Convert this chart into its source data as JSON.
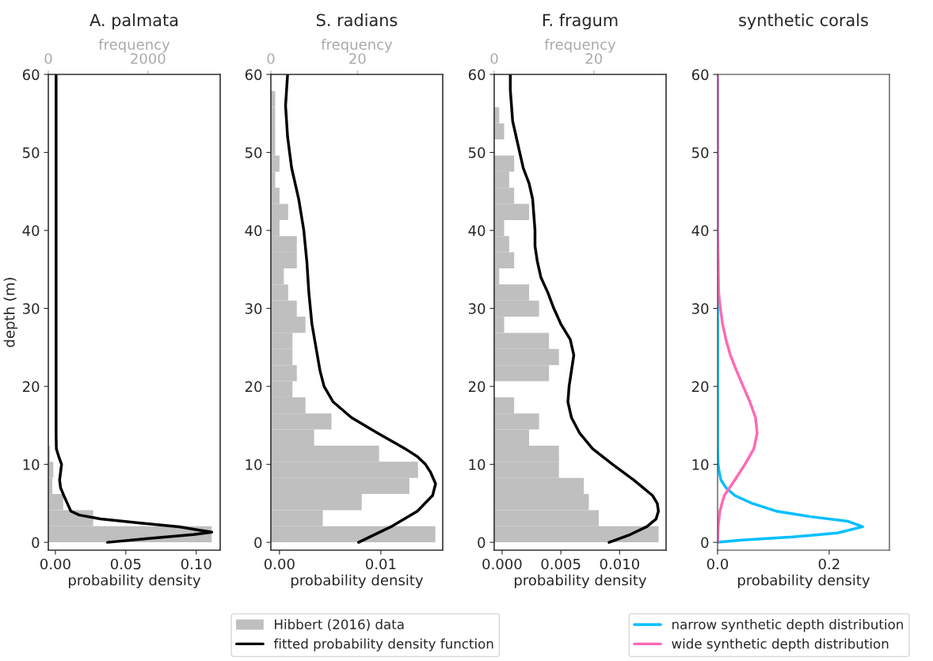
{
  "chart_data": [
    {
      "type": "line",
      "orientation": "horizontal",
      "title": "A. palmata",
      "xlabel": "probability density",
      "ylabel": "depth (m)",
      "x2label": "frequency",
      "xlim": [
        -0.005,
        0.117
      ],
      "xticks": [
        {
          "value": 0,
          "label": "0.00"
        },
        {
          "value": 0.05,
          "label": "0.05"
        },
        {
          "value": 0.1,
          "label": "0.10"
        }
      ],
      "x2lim": [
        0,
        3450
      ],
      "x2ticks": [
        0,
        2000
      ],
      "ylim": [
        -1,
        60
      ],
      "yticks": [
        0,
        10,
        20,
        30,
        40,
        50,
        60
      ],
      "series": [
        {
          "type": "histogram",
          "axis": "x2",
          "color": "#bfbfbf",
          "bins": [
            0,
            2.07,
            4.13,
            6.2,
            8.27,
            10.33,
            12.4
          ],
          "values": [
            3280,
            900,
            300,
            80,
            100,
            30
          ]
        },
        {
          "color": "#000000",
          "x": [
            0,
            0.5,
            1,
            1.3,
            2,
            2.5,
            3,
            3.5,
            4,
            5,
            6,
            7,
            8,
            9,
            10,
            11,
            12,
            14,
            20,
            60
          ],
          "values": [
            0.037,
            0.066,
            0.098,
            0.111,
            0.088,
            0.059,
            0.032,
            0.017,
            0.011,
            0.0085,
            0.006,
            0.0037,
            0.003,
            0.0037,
            0.0044,
            0.0024,
            0.0007,
            0.0005,
            0.0005,
            0.0005
          ]
        }
      ]
    },
    {
      "type": "line",
      "orientation": "horizontal",
      "title": "S. radians",
      "xlabel": "probability density",
      "x2label": "frequency",
      "xlim": [
        -0.00085,
        0.0161
      ],
      "xticks": [
        {
          "value": 0,
          "label": "0.00"
        },
        {
          "value": 0.01,
          "label": "0.01"
        }
      ],
      "x2lim": [
        0,
        39.7
      ],
      "x2ticks": [
        0,
        20
      ],
      "ylim": [
        -1,
        60
      ],
      "yticks": [
        0,
        10,
        20,
        30,
        40,
        50,
        60
      ],
      "legend": "bottom",
      "series": [
        {
          "type": "histogram",
          "axis": "x2",
          "name": "Hibbert (2016) data",
          "color": "#bfbfbf",
          "bins": [
            0,
            2.07,
            4.13,
            6.2,
            8.27,
            10.33,
            12.4,
            14.47,
            16.53,
            18.6,
            20.67,
            22.73,
            24.8,
            26.87,
            28.93,
            31,
            33.07,
            35.13,
            37.2,
            39.27,
            41.33,
            43.4,
            45.47,
            47.53,
            49.6,
            51.67,
            53.73,
            55.8,
            57.87,
            59.93
          ],
          "values": [
            38,
            12,
            21,
            32,
            34,
            25,
            10,
            14,
            8,
            5,
            6,
            5,
            5,
            8,
            6,
            4,
            3,
            6,
            6,
            2,
            4,
            2,
            1,
            2,
            1,
            1,
            1,
            1,
            0
          ]
        },
        {
          "name": "fitted probability density function",
          "color": "#000000",
          "x": [
            0,
            2,
            4,
            6,
            7.5,
            9,
            10,
            11,
            12,
            14,
            16,
            18,
            20,
            22,
            25,
            28,
            32,
            36,
            40,
            44,
            48,
            52,
            56,
            60
          ],
          "values": [
            0.0078,
            0.011,
            0.0136,
            0.0151,
            0.0154,
            0.0149,
            0.0144,
            0.0136,
            0.0124,
            0.0097,
            0.0071,
            0.0053,
            0.0044,
            0.004,
            0.0036,
            0.0032,
            0.0029,
            0.0027,
            0.0024,
            0.0019,
            0.0012,
            0.0008,
            0.0006,
            0.0008
          ]
        }
      ]
    },
    {
      "type": "line",
      "orientation": "horizontal",
      "title": "F. fragum",
      "xlabel": "probability density",
      "x2label": "frequency",
      "xlim": [
        -0.00067,
        0.01395
      ],
      "xticks": [
        {
          "value": 0,
          "label": "0.000"
        },
        {
          "value": 0.005,
          "label": "0.005"
        },
        {
          "value": 0.01,
          "label": "0.010"
        }
      ],
      "x2lim": [
        0,
        34.5
      ],
      "x2ticks": [
        0,
        20
      ],
      "ylim": [
        -1,
        60
      ],
      "yticks": [
        0,
        10,
        20,
        30,
        40,
        50,
        60
      ],
      "series": [
        {
          "type": "histogram",
          "axis": "x2",
          "color": "#bfbfbf",
          "bins": [
            0,
            2.07,
            4.13,
            6.2,
            8.27,
            10.33,
            12.4,
            14.47,
            16.53,
            18.6,
            20.67,
            22.73,
            24.8,
            26.87,
            28.93,
            31,
            33.07,
            35.13,
            37.2,
            39.27,
            41.33,
            43.4,
            45.47,
            47.53,
            49.6,
            51.67,
            53.73,
            55.8,
            57.87,
            59.93
          ],
          "values": [
            33,
            21,
            19,
            18,
            13,
            13,
            7,
            9,
            4,
            0,
            11,
            13,
            11,
            2,
            9,
            7,
            1,
            4,
            3,
            2,
            7,
            4,
            3,
            4,
            0,
            2,
            1,
            0,
            0
          ]
        },
        {
          "color": "#000000",
          "x": [
            0,
            1,
            2,
            3,
            4,
            5,
            6,
            7,
            8,
            10,
            12,
            14,
            16,
            18,
            20,
            22,
            24,
            26,
            28,
            30,
            32,
            34,
            36,
            38,
            40,
            42,
            44,
            46,
            48,
            50,
            52,
            54,
            56,
            58,
            60
          ],
          "values": [
            0.0091,
            0.0109,
            0.0123,
            0.0131,
            0.0133,
            0.0132,
            0.0128,
            0.012,
            0.0112,
            0.0094,
            0.0077,
            0.0066,
            0.0059,
            0.0056,
            0.0057,
            0.0059,
            0.0061,
            0.0058,
            0.005,
            0.0044,
            0.0039,
            0.0033,
            0.003,
            0.0028,
            0.0028,
            0.0027,
            0.0026,
            0.0023,
            0.0018,
            0.0015,
            0.0012,
            0.0009,
            0.0008,
            0.0007,
            0.0007
          ]
        }
      ]
    },
    {
      "type": "line",
      "orientation": "horizontal",
      "title": "synthetic corals",
      "xlabel": "probability density",
      "xlim": [
        0,
        0.308
      ],
      "xticks": [
        {
          "value": 0,
          "label": "0.0"
        },
        {
          "value": 0.2,
          "label": "0.2"
        }
      ],
      "ylim": [
        -1,
        60
      ],
      "yticks": [
        0,
        10,
        20,
        30,
        40,
        50,
        60
      ],
      "legend": "bottom",
      "series": [
        {
          "name": "narrow synthetic depth distribution",
          "color": "#00bfff",
          "x": [
            0,
            0.3,
            0.7,
            1.2,
            2,
            2.7,
            3.3,
            4,
            5,
            6,
            7,
            8,
            9,
            10,
            12,
            60
          ],
          "values": [
            0,
            0.043,
            0.135,
            0.215,
            0.26,
            0.234,
            0.166,
            0.105,
            0.062,
            0.031,
            0.015,
            0.006,
            0.003,
            0.001,
            0,
            0
          ]
        },
        {
          "name": "wide synthetic depth distribution",
          "color": "#ff69b4",
          "x": [
            0,
            2,
            4,
            6,
            8,
            10,
            12,
            14,
            16,
            18,
            20,
            22,
            24,
            26,
            28,
            30,
            32,
            36,
            40,
            60
          ],
          "values": [
            0,
            0.001,
            0.004,
            0.012,
            0.031,
            0.049,
            0.065,
            0.071,
            0.068,
            0.058,
            0.046,
            0.034,
            0.023,
            0.015,
            0.009,
            0.005,
            0.002,
            0.001,
            0,
            0
          ]
        }
      ]
    }
  ]
}
